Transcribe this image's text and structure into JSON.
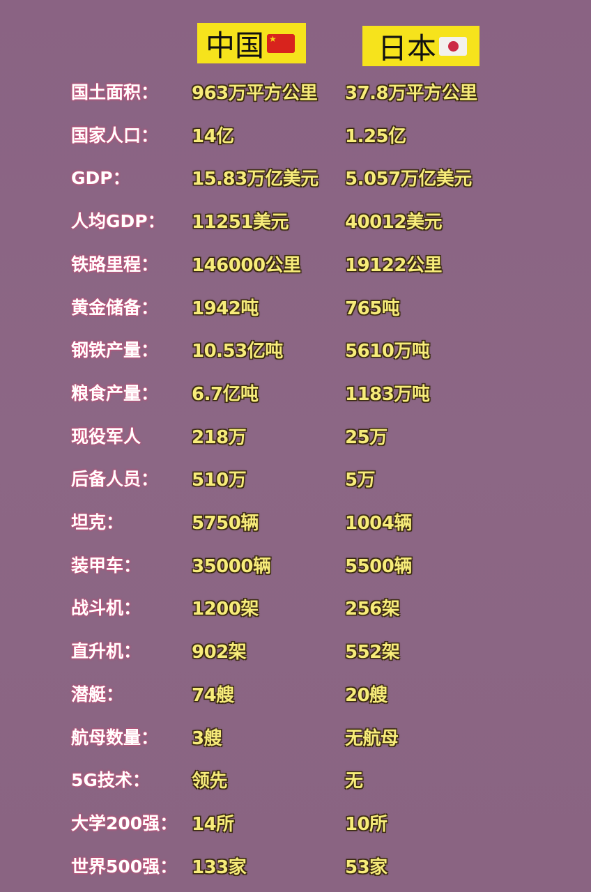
{
  "header": {
    "china": "中国",
    "japan": "日本",
    "china_flag": "china-flag-icon",
    "japan_flag": "japan-flag-icon"
  },
  "colors": {
    "background": "#8a6482",
    "header_bg": "#f6e31c",
    "value_text": "#f7ec7a",
    "label_text": "#ffffff"
  },
  "rows": [
    {
      "label": "国土面积：",
      "china": "963万平方公里",
      "japan": "37.8万平方公里"
    },
    {
      "label": "国家人口：",
      "china": "14亿",
      "japan": "1.25亿"
    },
    {
      "label": "GDP：",
      "china": "15.83万亿美元",
      "japan": "5.057万亿美元"
    },
    {
      "label": "人均GDP：",
      "china": "11251美元",
      "japan": "40012美元"
    },
    {
      "label": "铁路里程：",
      "china": "146000公里",
      "japan": "19122公里"
    },
    {
      "label": "黄金储备：",
      "china": "1942吨",
      "japan": "765吨"
    },
    {
      "label": "钢铁产量：",
      "china": "10.53亿吨",
      "japan": "5610万吨"
    },
    {
      "label": "粮食产量：",
      "china": "6.7亿吨",
      "japan": "1183万吨"
    },
    {
      "label": "现役军人",
      "china": "218万",
      "japan": "25万"
    },
    {
      "label": "后备人员：",
      "china": "510万",
      "japan": "5万"
    },
    {
      "label": "坦克：",
      "china": "5750辆",
      "japan": "1004辆"
    },
    {
      "label": "装甲车：",
      "china": "35000辆",
      "japan": "5500辆"
    },
    {
      "label": "战斗机：",
      "china": "1200架",
      "japan": "256架"
    },
    {
      "label": "直升机：",
      "china": "902架",
      "japan": "552架"
    },
    {
      "label": "潜艇：",
      "china": "74艘",
      "japan": "20艘"
    },
    {
      "label": "航母数量：",
      "china": "3艘",
      "japan": "无航母"
    },
    {
      "label": "5G技术：",
      "china": "领先",
      "japan": "无"
    },
    {
      "label": "大学200强：",
      "china": "14所",
      "japan": "10所"
    },
    {
      "label": "世界500强：",
      "china": "133家",
      "japan": "53家"
    }
  ]
}
